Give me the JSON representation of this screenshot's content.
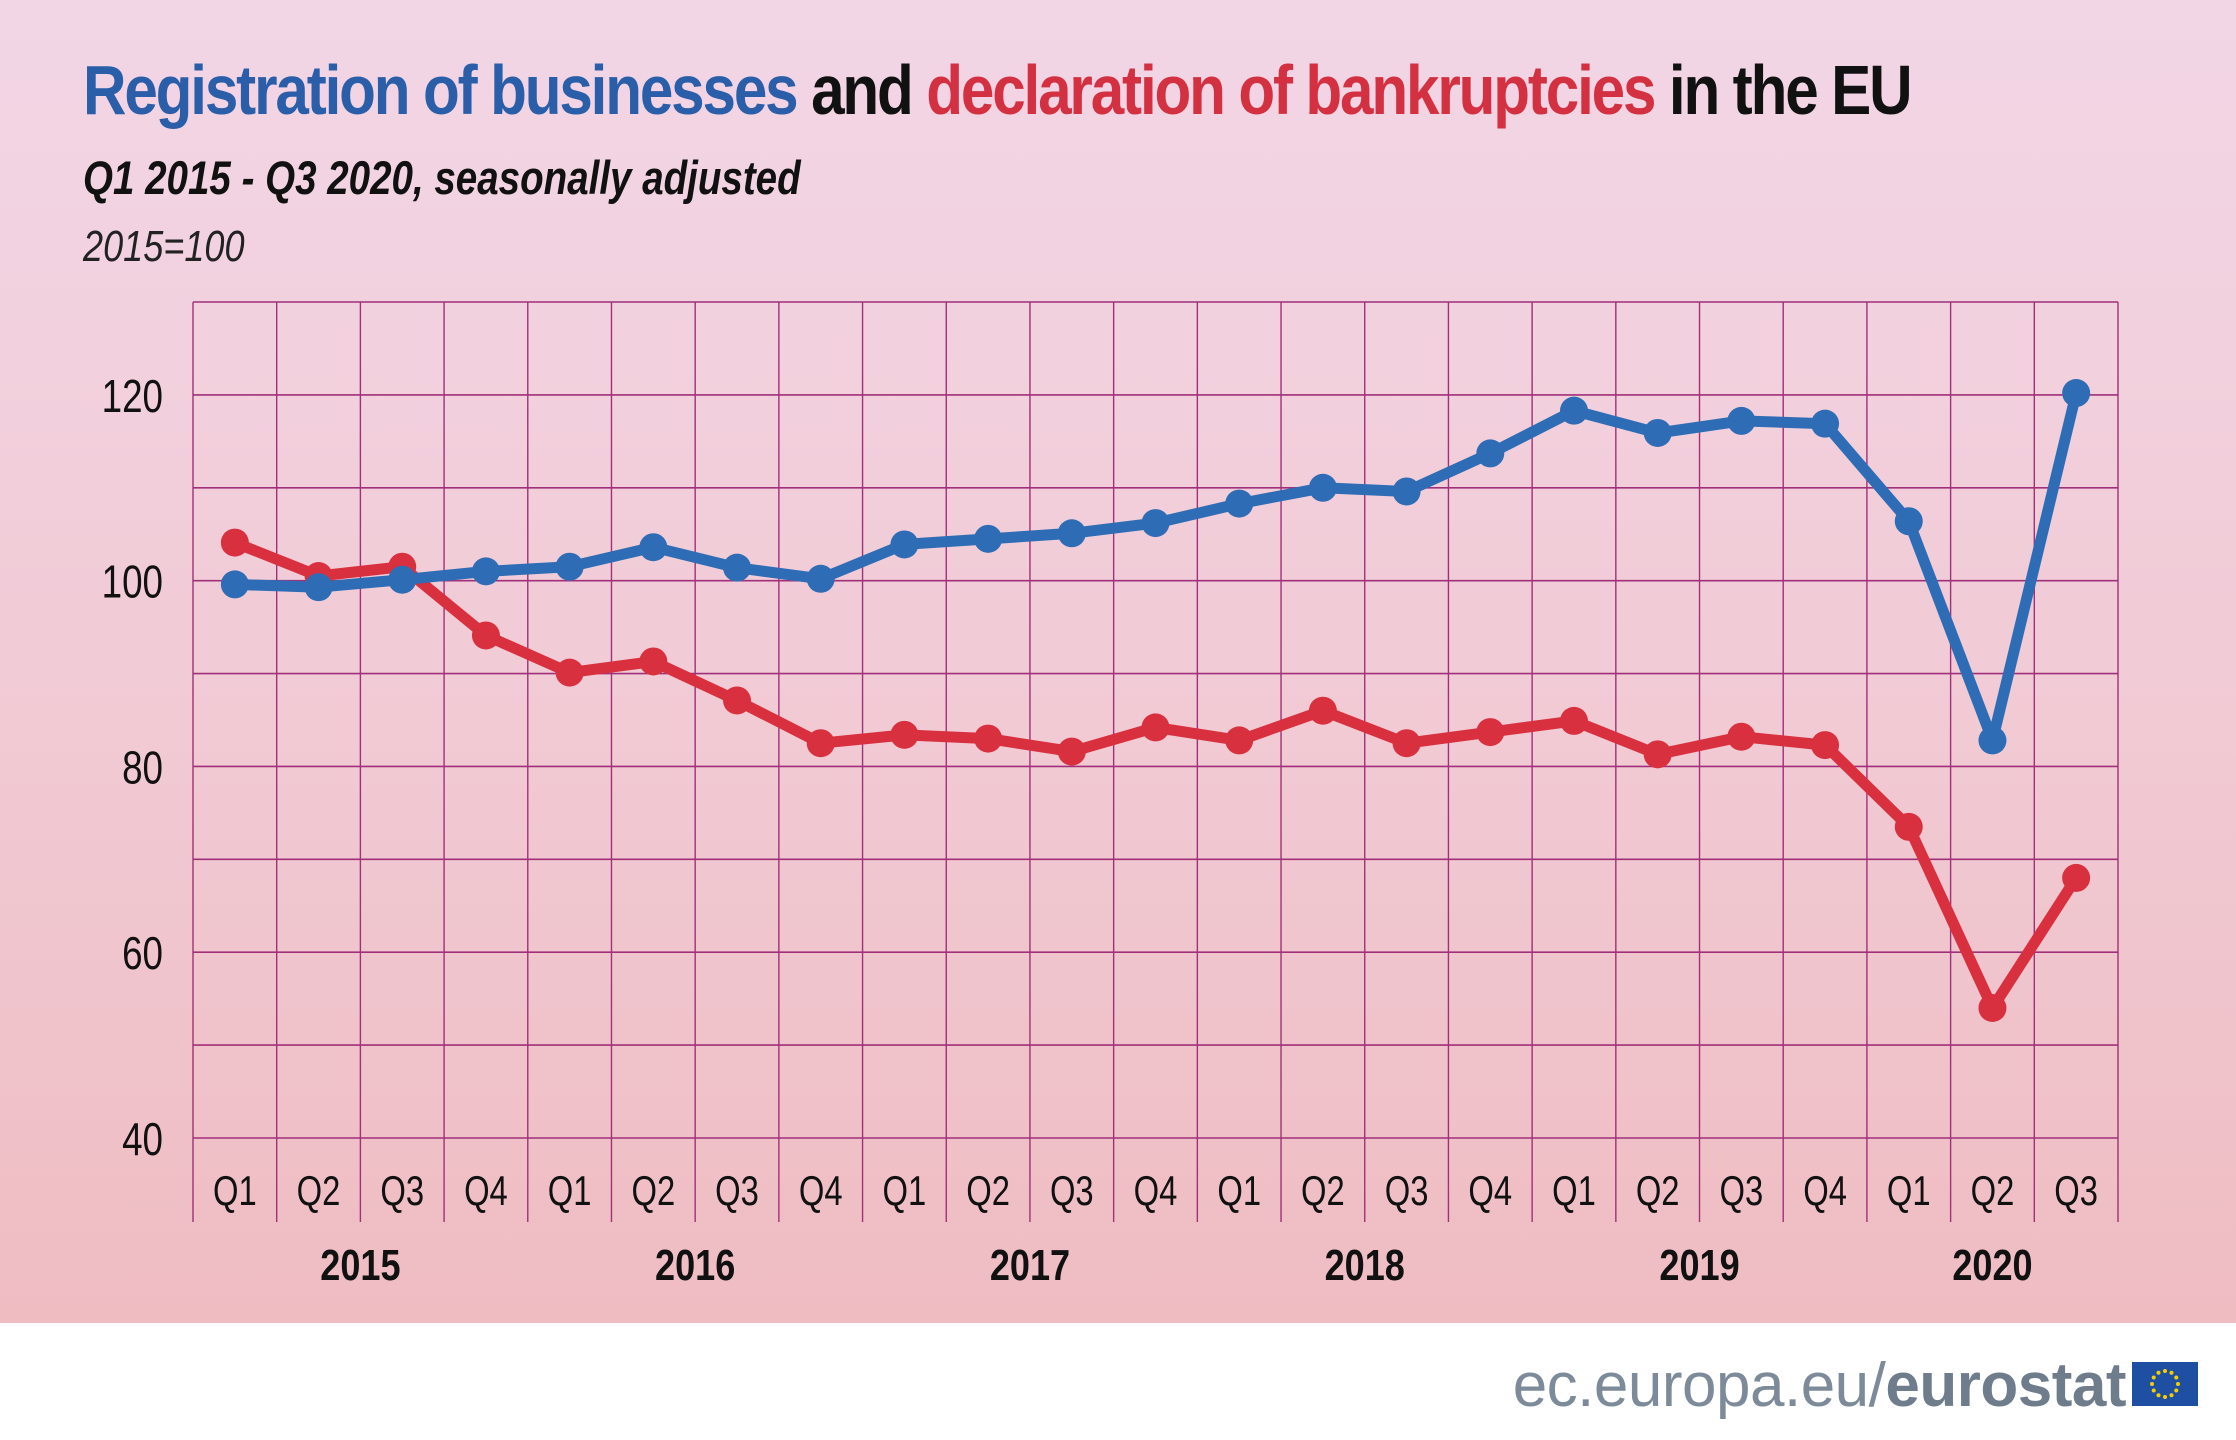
{
  "title": {
    "part1": "Registration of businesses",
    "part2": " and ",
    "part3": "declaration of bankruptcies",
    "part4": " in the EU"
  },
  "subtitle": "Q1 2015  - Q3 2020, seasonally adjusted",
  "unit_note": "2015=100",
  "source": {
    "prefix": "ec.europa.eu/",
    "brand": "eurostat"
  },
  "colors": {
    "registrations": "#2e6db5",
    "bankruptcies": "#d9303f",
    "grid": "#a0307a"
  },
  "chart_data": {
    "type": "line",
    "ylim": [
      40,
      130
    ],
    "yticks": [
      40,
      60,
      80,
      100,
      120
    ],
    "grid": true,
    "categories": [
      "Q1",
      "Q2",
      "Q3",
      "Q4",
      "Q1",
      "Q2",
      "Q3",
      "Q4",
      "Q1",
      "Q2",
      "Q3",
      "Q4",
      "Q1",
      "Q2",
      "Q3",
      "Q4",
      "Q1",
      "Q2",
      "Q3",
      "Q4",
      "Q1",
      "Q2",
      "Q3"
    ],
    "years": [
      {
        "label": "2015",
        "start": 0,
        "end": 3
      },
      {
        "label": "2016",
        "start": 4,
        "end": 7
      },
      {
        "label": "2017",
        "start": 8,
        "end": 11
      },
      {
        "label": "2018",
        "start": 12,
        "end": 15
      },
      {
        "label": "2019",
        "start": 16,
        "end": 19
      },
      {
        "label": "2020",
        "start": 20,
        "end": 22
      }
    ],
    "series": [
      {
        "key": "registrations",
        "values": [
          99.6,
          99.3,
          100.1,
          101.0,
          101.5,
          103.6,
          101.4,
          100.2,
          103.9,
          104.5,
          105.1,
          106.2,
          108.3,
          110.0,
          109.6,
          113.7,
          118.3,
          115.9,
          117.2,
          116.9,
          106.4,
          82.8,
          120.2
        ]
      },
      {
        "key": "bankruptcies",
        "values": [
          104.1,
          100.5,
          101.5,
          94.1,
          90.1,
          91.3,
          87.1,
          82.5,
          83.4,
          83.0,
          81.6,
          84.2,
          82.8,
          86.0,
          82.5,
          83.7,
          84.9,
          81.3,
          83.2,
          82.3,
          73.5,
          54.0,
          68.0
        ]
      }
    ]
  }
}
